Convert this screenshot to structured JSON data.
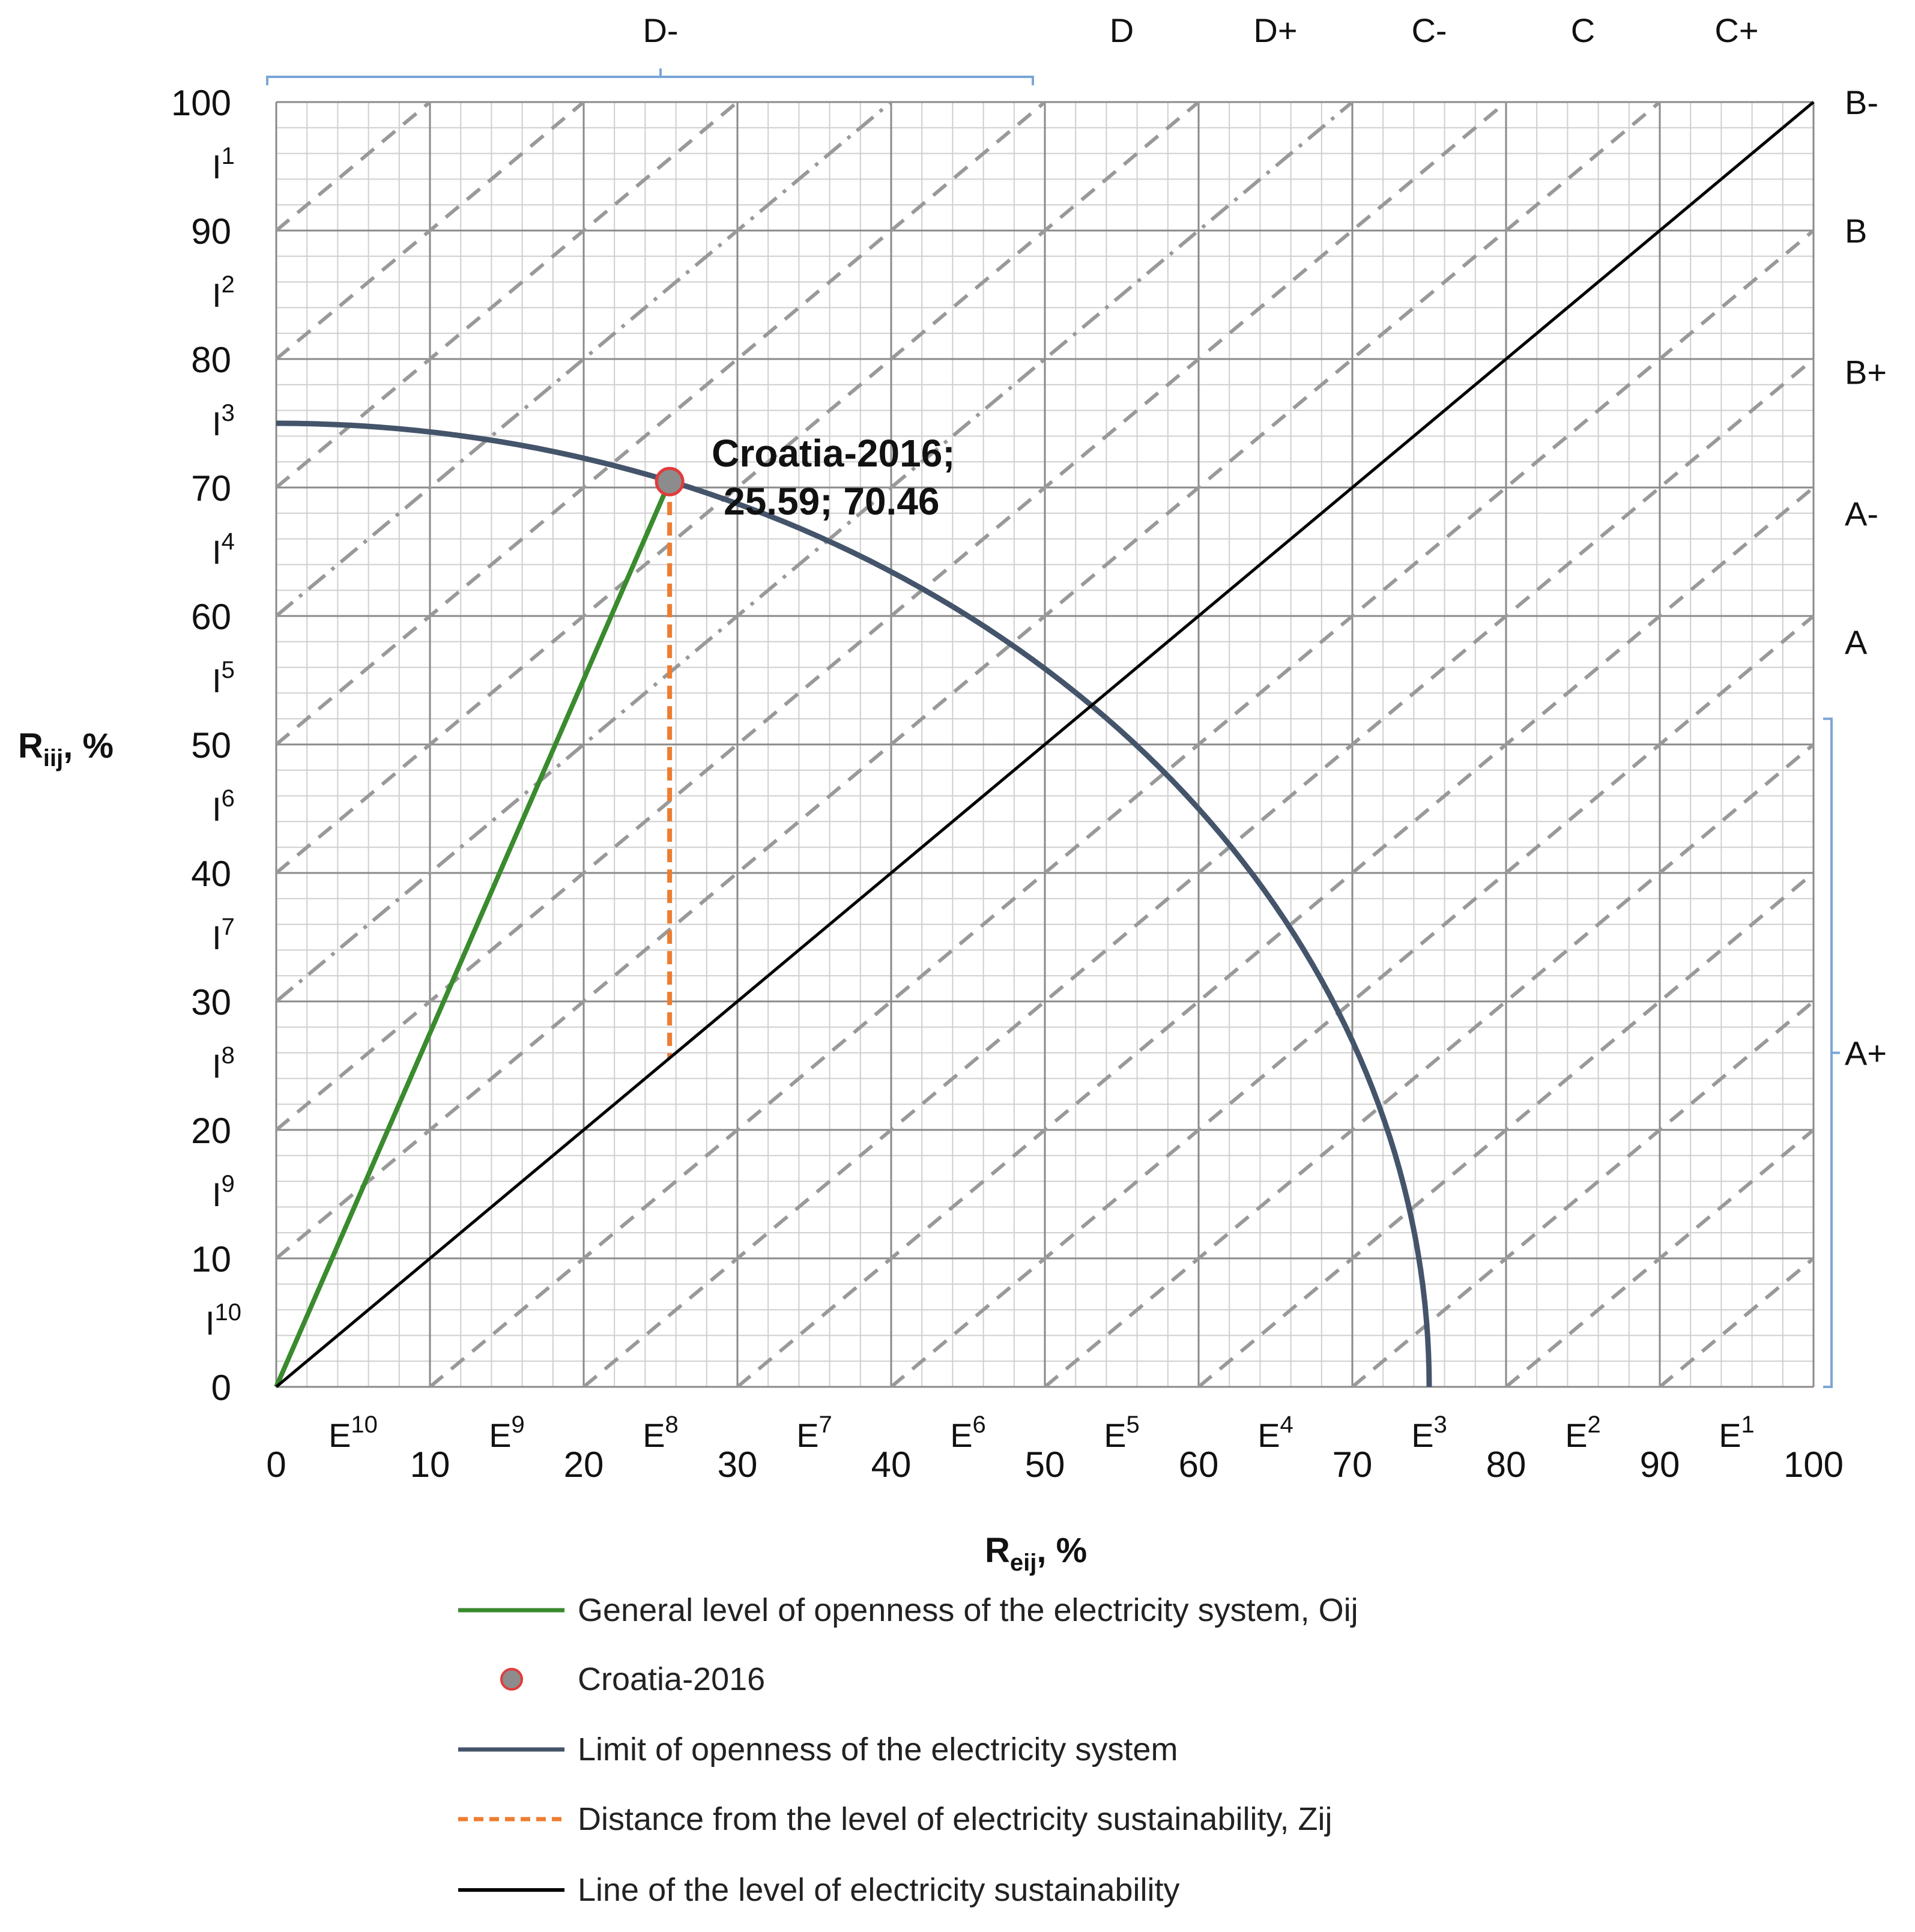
{
  "chart_data": {
    "type": "scatter",
    "xlabel": "R",
    "xlabel_sub": "eij",
    "xlabel_unit": ", %",
    "ylabel": "R",
    "ylabel_sub": "iij",
    "ylabel_unit": ", %",
    "xlim": [
      0,
      100
    ],
    "ylim": [
      0,
      100
    ],
    "x_ticks": [
      "0",
      "10",
      "20",
      "30",
      "40",
      "50",
      "60",
      "70",
      "80",
      "90",
      "100"
    ],
    "y_ticks": [
      "0",
      "10",
      "20",
      "30",
      "40",
      "50",
      "60",
      "70",
      "80",
      "90",
      "100"
    ],
    "grid": true,
    "minor_grid": true,
    "e_zones": [
      {
        "base": "E",
        "sup": "10",
        "x": 5
      },
      {
        "base": "E",
        "sup": "9",
        "x": 15
      },
      {
        "base": "E",
        "sup": "8",
        "x": 25
      },
      {
        "base": "E",
        "sup": "7",
        "x": 35
      },
      {
        "base": "E",
        "sup": "6",
        "x": 45
      },
      {
        "base": "E",
        "sup": "5",
        "x": 55
      },
      {
        "base": "E",
        "sup": "4",
        "x": 65
      },
      {
        "base": "E",
        "sup": "3",
        "x": 75
      },
      {
        "base": "E",
        "sup": "2",
        "x": 85
      },
      {
        "base": "E",
        "sup": "1",
        "x": 95
      }
    ],
    "i_zones": [
      {
        "base": "I",
        "sup": "1",
        "y": 95
      },
      {
        "base": "I",
        "sup": "2",
        "y": 85
      },
      {
        "base": "I",
        "sup": "3",
        "y": 75
      },
      {
        "base": "I",
        "sup": "4",
        "y": 65
      },
      {
        "base": "I",
        "sup": "5",
        "y": 55
      },
      {
        "base": "I",
        "sup": "6",
        "y": 45
      },
      {
        "base": "I",
        "sup": "7",
        "y": 35
      },
      {
        "base": "I",
        "sup": "8",
        "y": 25
      },
      {
        "base": "I",
        "sup": "9",
        "y": 15
      },
      {
        "base": "I",
        "sup": "10",
        "y": 5
      }
    ],
    "top_zones": [
      {
        "label": "D-",
        "x": 25,
        "bracket_from": 0,
        "bracket_to": 50
      },
      {
        "label": "D",
        "x": 55
      },
      {
        "label": "D+",
        "x": 65
      },
      {
        "label": "C-",
        "x": 75
      },
      {
        "label": "C",
        "x": 85
      },
      {
        "label": "C+",
        "x": 95
      }
    ],
    "right_zones": [
      {
        "label": "B-",
        "y": 100
      },
      {
        "label": "B",
        "y": 90
      },
      {
        "label": "B+",
        "y": 79
      },
      {
        "label": "A-",
        "y": 68
      },
      {
        "label": "A",
        "y": 58
      },
      {
        "label": "A+",
        "y": 26,
        "bracket_from": 0,
        "bracket_to": 52
      }
    ],
    "diagonal_offsets": [
      -90,
      -80,
      -70,
      -60,
      -50,
      -40,
      -30,
      -20,
      -10,
      10,
      20,
      30,
      40,
      50,
      60,
      70,
      80,
      90
    ],
    "dashdot_offsets": [
      30,
      60
    ],
    "series": [
      {
        "name": "General level of openness of the electricity system, Oij",
        "kind": "line",
        "color": "#3a8a2e",
        "dash": "solid",
        "points": [
          [
            0,
            0
          ],
          [
            25.59,
            70.46
          ]
        ]
      },
      {
        "name": "Croatia-2016",
        "kind": "point",
        "color": "#8c8c8c",
        "edge": "#e23b3b",
        "points": [
          [
            25.59,
            70.46
          ]
        ]
      },
      {
        "name": "Limit of openness of the electricity system",
        "kind": "curve",
        "color": "#44546a",
        "dash": "solid",
        "radius": 75
      },
      {
        "name": "Distance from the level of electricity sustainability, Zij",
        "kind": "line",
        "color": "#ed7d31",
        "dash": "dashed",
        "points": [
          [
            25.59,
            70.46
          ],
          [
            25.59,
            25.59
          ]
        ]
      },
      {
        "name": "Line of the level of electricity sustainability",
        "kind": "line",
        "color": "#000000",
        "dash": "solid",
        "points": [
          [
            0,
            0
          ],
          [
            100,
            100
          ]
        ]
      }
    ],
    "annotation": {
      "line1": "Croatia-2016;",
      "line2": "25.59; 70.46",
      "x": 25.59,
      "y": 70.46
    }
  }
}
